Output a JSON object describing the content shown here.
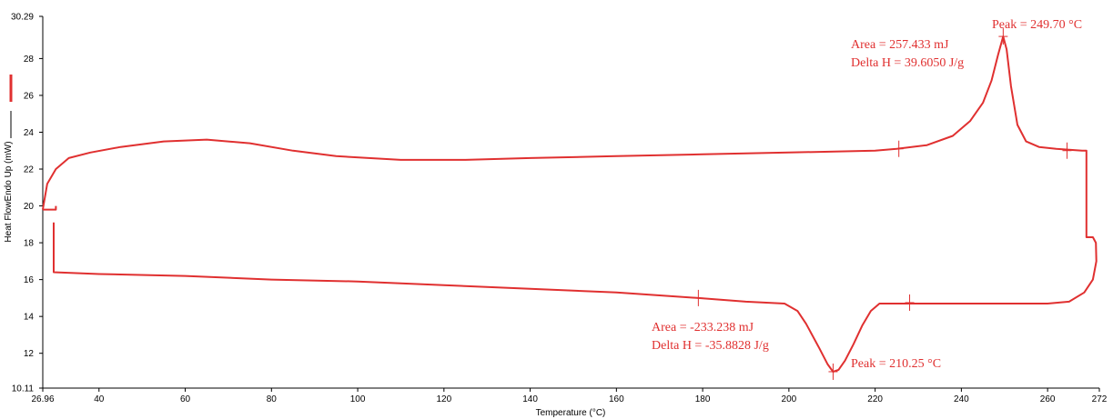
{
  "chart_data": {
    "type": "line",
    "title": "",
    "xlabel": "Temperature (°C)",
    "ylabel": "Heat FlowEndo Up (mW)",
    "xlim": [
      26.96,
      272
    ],
    "ylim": [
      10.11,
      30.29
    ],
    "x_ticks": [
      {
        "value": 26.96,
        "label": "26.96"
      },
      {
        "value": 40,
        "label": "40"
      },
      {
        "value": 60,
        "label": "60"
      },
      {
        "value": 80,
        "label": "80"
      },
      {
        "value": 100,
        "label": "100"
      },
      {
        "value": 120,
        "label": "120"
      },
      {
        "value": 140,
        "label": "140"
      },
      {
        "value": 160,
        "label": "160"
      },
      {
        "value": 180,
        "label": "180"
      },
      {
        "value": 200,
        "label": "200"
      },
      {
        "value": 220,
        "label": "220"
      },
      {
        "value": 240,
        "label": "240"
      },
      {
        "value": 260,
        "label": "260"
      },
      {
        "value": 272,
        "label": "272"
      }
    ],
    "y_ticks": [
      {
        "value": 10.11,
        "label": "10.11"
      },
      {
        "value": 12,
        "label": "12"
      },
      {
        "value": 14,
        "label": "14"
      },
      {
        "value": 16,
        "label": "16"
      },
      {
        "value": 18,
        "label": "18"
      },
      {
        "value": 20,
        "label": "20"
      },
      {
        "value": 22,
        "label": "22"
      },
      {
        "value": 24,
        "label": "24"
      },
      {
        "value": 26,
        "label": "26"
      },
      {
        "value": 28,
        "label": "28"
      },
      {
        "value": 30.29,
        "label": "30.29"
      }
    ],
    "grid": false,
    "line_color": "#e03030",
    "series": [
      {
        "values": [
          [
            26.96,
            19.8
          ],
          [
            28,
            21.2
          ],
          [
            30,
            22.0
          ],
          [
            33,
            22.6
          ],
          [
            38,
            22.9
          ],
          [
            45,
            23.2
          ],
          [
            55,
            23.5
          ],
          [
            65,
            23.6
          ],
          [
            75,
            23.4
          ],
          [
            85,
            23.0
          ],
          [
            95,
            22.7
          ],
          [
            110,
            22.5
          ],
          [
            125,
            22.5
          ],
          [
            140,
            22.6
          ],
          [
            160,
            22.7
          ],
          [
            180,
            22.8
          ],
          [
            200,
            22.9
          ],
          [
            220,
            23.0
          ],
          [
            225,
            23.1
          ],
          [
            232,
            23.3
          ],
          [
            238,
            23.8
          ],
          [
            242,
            24.6
          ],
          [
            245,
            25.6
          ],
          [
            247,
            26.8
          ],
          [
            248.5,
            28.2
          ],
          [
            249.7,
            29.2
          ],
          [
            250.5,
            28.5
          ],
          [
            251.5,
            26.5
          ],
          [
            253,
            24.4
          ],
          [
            255,
            23.5
          ],
          [
            258,
            23.2
          ],
          [
            262,
            23.1
          ],
          [
            268,
            23.0
          ],
          [
            269,
            23.0
          ],
          [
            269,
            18.3
          ],
          [
            270.5,
            18.3
          ],
          [
            271.2,
            18.0
          ],
          [
            271.3,
            17.0
          ],
          [
            270.5,
            16.0
          ],
          [
            268.5,
            15.3
          ],
          [
            265,
            14.8
          ],
          [
            260,
            14.7
          ],
          [
            240,
            14.7
          ],
          [
            225,
            14.7
          ],
          [
            221,
            14.7
          ],
          [
            219,
            14.3
          ],
          [
            217,
            13.5
          ],
          [
            215,
            12.5
          ],
          [
            213,
            11.6
          ],
          [
            211.5,
            11.1
          ],
          [
            210.25,
            11.0
          ],
          [
            209,
            11.4
          ],
          [
            207,
            12.3
          ],
          [
            204,
            13.6
          ],
          [
            202,
            14.3
          ],
          [
            199,
            14.7
          ],
          [
            190,
            14.8
          ],
          [
            179,
            15.0
          ],
          [
            160,
            15.3
          ],
          [
            140,
            15.5
          ],
          [
            120,
            15.7
          ],
          [
            100,
            15.9
          ],
          [
            80,
            16.0
          ],
          [
            60,
            16.2
          ],
          [
            40,
            16.3
          ],
          [
            29.5,
            16.4
          ],
          [
            29.5,
            19.1
          ]
        ]
      }
    ],
    "extra_paths": [
      [
        [
          26.96,
          19.8
        ],
        [
          30,
          19.8
        ],
        [
          30,
          20.0
        ]
      ]
    ],
    "markers": [
      {
        "x": 225.5,
        "y": 23.1
      },
      {
        "x": 264.5,
        "y": 23.0
      },
      {
        "x": 179,
        "y": 15.0
      },
      {
        "x": 228,
        "y": 14.75
      },
      {
        "x": 210.25,
        "y": 11.0
      },
      {
        "x": 249.7,
        "y": 29.2
      }
    ],
    "annotations": {
      "peak_endo": "Peak = 249.70 °C",
      "area_endo": "Area = 257.433 mJ",
      "delta_h_endo": "Delta H = 39.6050 J/g",
      "area_exo": "Area = -233.238 mJ",
      "delta_h_exo": "Delta H = -35.8828 J/g",
      "peak_exo": "Peak = 210.25 °C"
    }
  }
}
